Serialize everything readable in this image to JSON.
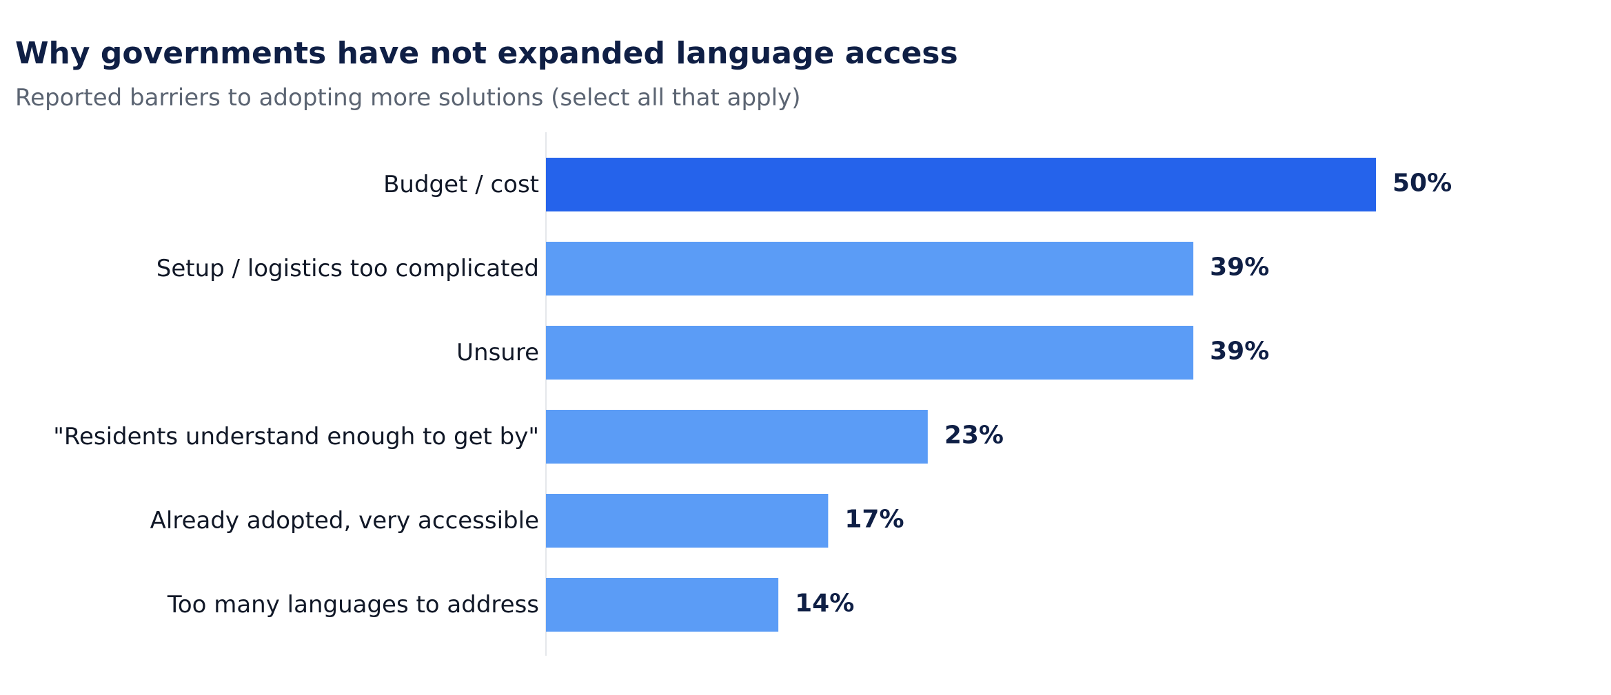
{
  "chart_data": {
    "type": "bar",
    "orientation": "horizontal",
    "title": "Why governments have not expanded language access",
    "subtitle": "Reported barriers to adopting more solutions (select all that apply)",
    "categories": [
      "Budget / cost",
      "Setup / logistics too complicated",
      "Unsure",
      "\"Residents understand enough to get by\"",
      "Already adopted, very accessible",
      "Too many languages to address"
    ],
    "values": [
      50,
      39,
      39,
      23,
      17,
      14
    ],
    "value_labels": [
      "50%",
      "39%",
      "39%",
      "23%",
      "17%",
      "14%"
    ],
    "unit": "%",
    "xlim": [
      0,
      50
    ],
    "grid": false,
    "legend": "none",
    "colors": {
      "highlight": "#2563eb",
      "default": "#5b9cf6",
      "axis": "#e5e7eb",
      "title": "#0f1f45",
      "subtitle": "#5b6472",
      "category_text": "#111827",
      "value_text": "#0f1f45"
    },
    "highlight_index": 0
  }
}
